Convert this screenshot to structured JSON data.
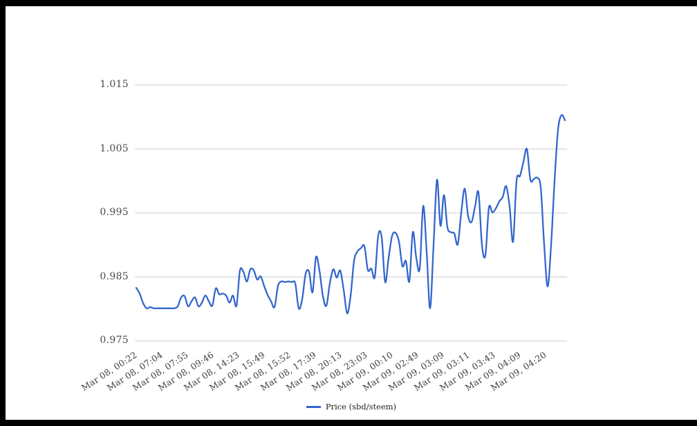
{
  "chart_data": {
    "type": "line",
    "title": "",
    "xlabel": "",
    "ylabel": "",
    "ylim": [
      0.975,
      1.015
    ],
    "y_ticks": [
      1.015,
      1.005,
      0.995,
      0.985,
      0.975
    ],
    "grid": true,
    "legend_position": "bottom",
    "x_labels": [
      "Mar 08, 00:22",
      "Mar 08, 07:04",
      "Mar 08, 07:55",
      "Mar 08, 09:46",
      "Mar 08, 14:23",
      "Mar 08, 15:49",
      "Mar 08, 15:52",
      "Mar 08, 17:39",
      "Mar 08, 20:13",
      "Mar 08, 23:03",
      "Mar 09, 00:10",
      "Mar 09, 02:49",
      "Mar 09, 03:09",
      "Mar 09, 03:11",
      "Mar 09, 03:43",
      "Mar 09, 04:09",
      "Mar 09, 04:20"
    ],
    "series": [
      {
        "name": "Price (sbd/steem)",
        "color": "#3366cc",
        "values": [
          0.9833,
          0.9824,
          0.9809,
          0.9801,
          0.9803,
          0.9801,
          0.9801,
          0.9801,
          0.9801,
          0.9801,
          0.9801,
          0.9801,
          0.9804,
          0.9818,
          0.982,
          0.9804,
          0.9812,
          0.9818,
          0.9804,
          0.981,
          0.9821,
          0.9812,
          0.9805,
          0.9832,
          0.9823,
          0.9824,
          0.9821,
          0.981,
          0.9821,
          0.9805,
          0.986,
          0.9858,
          0.9843,
          0.9862,
          0.986,
          0.9846,
          0.9851,
          0.9836,
          0.9822,
          0.9812,
          0.9803,
          0.9836,
          0.9843,
          0.9842,
          0.9843,
          0.9842,
          0.984,
          0.9801,
          0.9815,
          0.9855,
          0.9858,
          0.9826,
          0.9881,
          0.986,
          0.982,
          0.9805,
          0.984,
          0.9862,
          0.9849,
          0.986,
          0.983,
          0.9793,
          0.982,
          0.9875,
          0.989,
          0.9895,
          0.9898,
          0.9861,
          0.9863,
          0.985,
          0.9915,
          0.9912,
          0.9842,
          0.988,
          0.9914,
          0.9919,
          0.9905,
          0.9867,
          0.9875,
          0.9843,
          0.992,
          0.988,
          0.9863,
          0.9961,
          0.989,
          0.9801,
          0.99,
          1.0002,
          0.993,
          0.9978,
          0.9928,
          0.992,
          0.9918,
          0.9901,
          0.995,
          0.9988,
          0.9945,
          0.9936,
          0.996,
          0.9982,
          0.99,
          0.9884,
          0.9958,
          0.9951,
          0.9957,
          0.9968,
          0.9975,
          0.9992,
          0.996,
          0.9905,
          1.0,
          1.0008,
          1.003,
          1.005,
          1.0002,
          1.0003,
          1.0005,
          0.999,
          0.99,
          0.9835,
          0.99,
          1.0,
          1.008,
          1.0103,
          1.0095
        ]
      }
    ]
  },
  "legend": {
    "label": "Price (sbd/steem)"
  },
  "colors": {
    "line": "#3366cc",
    "grid": "#cccccc",
    "axis_text": "#444444",
    "frame": "#000000",
    "background": "#ffffff"
  }
}
